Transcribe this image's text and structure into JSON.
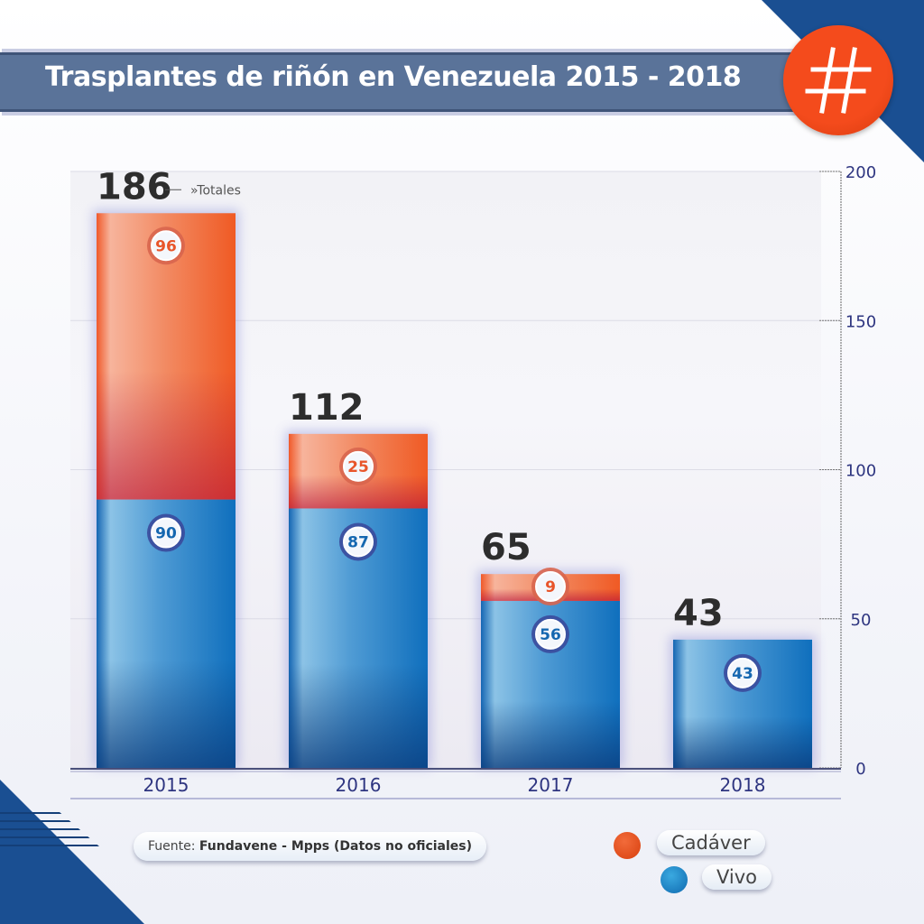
{
  "header": {
    "title": "Trasplantes de riñón en Venezuela 2015 - 2018",
    "badge_icon": "hash-icon"
  },
  "colors": {
    "cadaver": "#f0592a",
    "vivo": "#1b7cc4",
    "title_bar": "#5a7399",
    "brand_blue": "#1a4f92",
    "axis_text": "#2e3580"
  },
  "chart_data": {
    "type": "bar",
    "stacked": true,
    "title": "Trasplantes de riñón en Venezuela 2015 - 2018",
    "categories": [
      "2015",
      "2016",
      "2017",
      "2018"
    ],
    "series": [
      {
        "name": "Vivo",
        "values": [
          90,
          87,
          56,
          43
        ]
      },
      {
        "name": "Cadáver",
        "values": [
          96,
          25,
          9,
          0
        ]
      }
    ],
    "totals": [
      186,
      112,
      65,
      43
    ],
    "totals_annotation": "Totales",
    "yticks": [
      "0",
      "50",
      "100",
      "150",
      "200"
    ],
    "ylim": [
      0,
      200
    ],
    "yaxis_position": "right",
    "legend": [
      "Cadáver",
      "Vivo"
    ],
    "legend_position": "bottom-right"
  },
  "source": {
    "label": "Fuente:",
    "value": "Fundavene - Mpps (Datos no oficiales)"
  },
  "legend": {
    "cadaver": "Cadáver",
    "vivo": "Vivo"
  }
}
